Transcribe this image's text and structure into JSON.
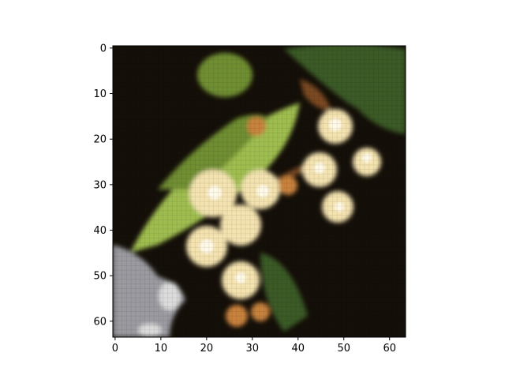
{
  "figure": {
    "axes": {
      "x": {
        "range": [
          -0.5,
          63.5
        ],
        "ticks": [
          0,
          10,
          20,
          30,
          40,
          50,
          60
        ],
        "tick_labels": [
          "0",
          "10",
          "20",
          "30",
          "40",
          "50",
          "60"
        ]
      },
      "y": {
        "range": [
          -0.5,
          63.5
        ],
        "inverted": true,
        "ticks": [
          0,
          10,
          20,
          30,
          40,
          50,
          60
        ],
        "tick_labels": [
          "0",
          "10",
          "20",
          "30",
          "40",
          "50",
          "60"
        ]
      }
    },
    "image": {
      "subject": "linden-blossom-cluster",
      "grid_size": [
        64,
        64
      ],
      "palette": {
        "background": "#140f08",
        "leaf_light": "#9fbd4f",
        "leaf_mid": "#6f8e32",
        "leaf_dark": "#3b5a25",
        "blossom_cream": "#f4e3b0",
        "blossom_core": "#fff9e8",
        "blossom_amber": "#c8823c",
        "stem_brown": "#7a4a22",
        "rock_gray": "#9a9aa0",
        "rock_light": "#dcdcdc"
      }
    }
  }
}
